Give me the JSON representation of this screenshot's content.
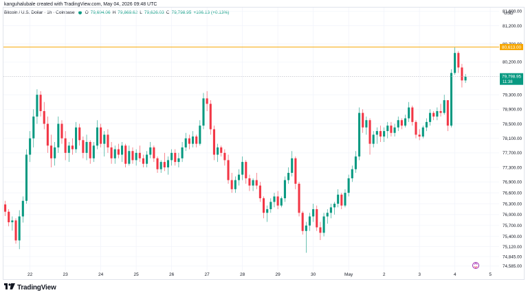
{
  "caption": "kanguhalubale created with TradingView.com, May 04, 2026 09:48 UTC",
  "legend": {
    "symbol": "Bitcoin / U.S. Dollar · 1h · Coinbase",
    "o_label": "O",
    "o_value": "79,694.06",
    "h_label": "H",
    "h_value": "79,869.62",
    "l_label": "L",
    "l_value": "79,626.03",
    "c_label": "C",
    "c_value": "79,798.95",
    "change": "+106.13 (+0.13%)"
  },
  "currency": "USD",
  "brand": {
    "logo_icon": "tradingview-logo-icon",
    "name": "TradingView"
  },
  "colors": {
    "up": "#089981",
    "down": "#f23645",
    "hline": "#f7a600",
    "price_label": "#089981"
  },
  "chart_data": {
    "type": "candlestick",
    "title": "Bitcoin / U.S. Dollar · 1h · Coinbase",
    "ylim": [
      74450,
      81700
    ],
    "y_ticks": [
      {
        "v": 81600,
        "label": "81,600.00"
      },
      {
        "v": 81200,
        "label": "81,200.00"
      },
      {
        "v": 80700,
        "label": "80,700.00"
      },
      {
        "v": 80200,
        "label": "80,200.00"
      },
      {
        "v": 79300,
        "label": "79,300.00"
      },
      {
        "v": 78900,
        "label": "78,900.00"
      },
      {
        "v": 78500,
        "label": "78,500.00"
      },
      {
        "v": 78100,
        "label": "78,100.00"
      },
      {
        "v": 77700,
        "label": "77,700.00"
      },
      {
        "v": 77300,
        "label": "77,300.00"
      },
      {
        "v": 76900,
        "label": "76,900.00"
      },
      {
        "v": 76600,
        "label": "76,600.00"
      },
      {
        "v": 76300,
        "label": "76,300.00"
      },
      {
        "v": 76000,
        "label": "76,000.00"
      },
      {
        "v": 75700,
        "label": "75,700.00"
      },
      {
        "v": 75400,
        "label": "75,400.00"
      },
      {
        "v": 75120,
        "label": "75,120.00"
      },
      {
        "v": 74845,
        "label": "74,845.00"
      },
      {
        "v": 74585,
        "label": "74,585.00"
      }
    ],
    "x_ticks": [
      {
        "day": 1,
        "label": "22"
      },
      {
        "day": 2,
        "label": "23"
      },
      {
        "day": 3,
        "label": "24"
      },
      {
        "day": 4,
        "label": "25"
      },
      {
        "day": 5,
        "label": "26"
      },
      {
        "day": 6,
        "label": "27"
      },
      {
        "day": 7,
        "label": "28"
      },
      {
        "day": 8,
        "label": "29"
      },
      {
        "day": 9,
        "label": "30"
      },
      {
        "day": 10,
        "label": "May"
      },
      {
        "day": 11,
        "label": "2"
      },
      {
        "day": 12,
        "label": "3"
      },
      {
        "day": 13,
        "label": "4"
      },
      {
        "day": 14,
        "label": "5"
      }
    ],
    "x_range_days": [
      0.25,
      14.25
    ],
    "horizontal_line": {
      "value": 80613,
      "label": "80,613.00"
    },
    "last_price": {
      "value": 79798.95,
      "label": "79,798.95",
      "countdown": "11:38"
    },
    "candles": [
      {
        "d": 0.3,
        "o": 76280,
        "h": 76380,
        "l": 75960,
        "c": 76080
      },
      {
        "d": 0.4,
        "o": 76080,
        "h": 76150,
        "l": 75680,
        "c": 75790
      },
      {
        "d": 0.5,
        "o": 75790,
        "h": 75950,
        "l": 75560,
        "c": 75840
      },
      {
        "d": 0.6,
        "o": 75840,
        "h": 75900,
        "l": 75200,
        "c": 75290
      },
      {
        "d": 0.7,
        "o": 75290,
        "h": 76120,
        "l": 75050,
        "c": 75950
      },
      {
        "d": 0.8,
        "o": 75950,
        "h": 76500,
        "l": 75780,
        "c": 76380
      },
      {
        "d": 0.9,
        "o": 76380,
        "h": 77800,
        "l": 76300,
        "c": 77650
      },
      {
        "d": 1.0,
        "o": 77650,
        "h": 78300,
        "l": 77450,
        "c": 78100
      },
      {
        "d": 1.1,
        "o": 78100,
        "h": 78900,
        "l": 77850,
        "c": 78700
      },
      {
        "d": 1.2,
        "o": 78700,
        "h": 79450,
        "l": 78500,
        "c": 79300
      },
      {
        "d": 1.3,
        "o": 79300,
        "h": 79400,
        "l": 78700,
        "c": 78850
      },
      {
        "d": 1.4,
        "o": 78850,
        "h": 79100,
        "l": 78350,
        "c": 78500
      },
      {
        "d": 1.5,
        "o": 78500,
        "h": 78700,
        "l": 77700,
        "c": 77900
      },
      {
        "d": 1.6,
        "o": 77900,
        "h": 78200,
        "l": 77300,
        "c": 77550
      },
      {
        "d": 1.7,
        "o": 77550,
        "h": 78000,
        "l": 77350,
        "c": 77850
      },
      {
        "d": 1.8,
        "o": 77850,
        "h": 78700,
        "l": 77700,
        "c": 78500
      },
      {
        "d": 1.9,
        "o": 78500,
        "h": 78600,
        "l": 77950,
        "c": 78100
      },
      {
        "d": 2.0,
        "o": 78100,
        "h": 78300,
        "l": 77500,
        "c": 77700
      },
      {
        "d": 2.1,
        "o": 77700,
        "h": 78000,
        "l": 77450,
        "c": 77900
      },
      {
        "d": 2.2,
        "o": 77900,
        "h": 78100,
        "l": 77650,
        "c": 77800
      },
      {
        "d": 2.3,
        "o": 77800,
        "h": 78550,
        "l": 77700,
        "c": 78400
      },
      {
        "d": 2.4,
        "o": 78400,
        "h": 78500,
        "l": 77900,
        "c": 78050
      },
      {
        "d": 2.5,
        "o": 78050,
        "h": 78150,
        "l": 77550,
        "c": 77700
      },
      {
        "d": 2.6,
        "o": 77700,
        "h": 78200,
        "l": 77500,
        "c": 78000
      },
      {
        "d": 2.7,
        "o": 78000,
        "h": 78050,
        "l": 77400,
        "c": 77550
      },
      {
        "d": 2.8,
        "o": 77550,
        "h": 78000,
        "l": 77450,
        "c": 77900
      },
      {
        "d": 2.9,
        "o": 77900,
        "h": 78600,
        "l": 77800,
        "c": 78400
      },
      {
        "d": 3.0,
        "o": 78400,
        "h": 78500,
        "l": 77850,
        "c": 77950
      },
      {
        "d": 3.1,
        "o": 77950,
        "h": 78300,
        "l": 77600,
        "c": 78200
      },
      {
        "d": 3.2,
        "o": 78200,
        "h": 78350,
        "l": 77700,
        "c": 77850
      },
      {
        "d": 3.3,
        "o": 77850,
        "h": 78000,
        "l": 77400,
        "c": 77550
      },
      {
        "d": 3.4,
        "o": 77550,
        "h": 77900,
        "l": 77400,
        "c": 77800
      },
      {
        "d": 3.5,
        "o": 77800,
        "h": 77950,
        "l": 77550,
        "c": 77650
      },
      {
        "d": 3.6,
        "o": 77650,
        "h": 78000,
        "l": 77450,
        "c": 77900
      },
      {
        "d": 3.7,
        "o": 77900,
        "h": 77950,
        "l": 77300,
        "c": 77400
      },
      {
        "d": 3.8,
        "o": 77400,
        "h": 77900,
        "l": 77350,
        "c": 77750
      },
      {
        "d": 3.9,
        "o": 77750,
        "h": 77850,
        "l": 77400,
        "c": 77500
      },
      {
        "d": 4.0,
        "o": 77500,
        "h": 77800,
        "l": 77350,
        "c": 77700
      },
      {
        "d": 4.1,
        "o": 77700,
        "h": 77900,
        "l": 77450,
        "c": 77550
      },
      {
        "d": 4.2,
        "o": 77550,
        "h": 77650,
        "l": 77300,
        "c": 77400
      },
      {
        "d": 4.3,
        "o": 77400,
        "h": 77750,
        "l": 77300,
        "c": 77650
      },
      {
        "d": 4.4,
        "o": 77650,
        "h": 78000,
        "l": 77550,
        "c": 77850
      },
      {
        "d": 4.5,
        "o": 77850,
        "h": 77900,
        "l": 77450,
        "c": 77550
      },
      {
        "d": 4.6,
        "o": 77550,
        "h": 77600,
        "l": 77150,
        "c": 77250
      },
      {
        "d": 4.7,
        "o": 77250,
        "h": 77500,
        "l": 77150,
        "c": 77450
      },
      {
        "d": 4.8,
        "o": 77450,
        "h": 77700,
        "l": 77200,
        "c": 77300
      },
      {
        "d": 4.9,
        "o": 77300,
        "h": 77600,
        "l": 77100,
        "c": 77500
      },
      {
        "d": 5.0,
        "o": 77500,
        "h": 77800,
        "l": 77350,
        "c": 77700
      },
      {
        "d": 5.1,
        "o": 77700,
        "h": 77800,
        "l": 77350,
        "c": 77450
      },
      {
        "d": 5.2,
        "o": 77450,
        "h": 77700,
        "l": 77300,
        "c": 77550
      },
      {
        "d": 5.3,
        "o": 77550,
        "h": 78000,
        "l": 77450,
        "c": 77850
      },
      {
        "d": 5.4,
        "o": 77850,
        "h": 78250,
        "l": 77750,
        "c": 78100
      },
      {
        "d": 5.5,
        "o": 78100,
        "h": 78200,
        "l": 77800,
        "c": 77950
      },
      {
        "d": 5.6,
        "o": 77950,
        "h": 78300,
        "l": 77850,
        "c": 78150
      },
      {
        "d": 5.7,
        "o": 78150,
        "h": 78200,
        "l": 77850,
        "c": 77950
      },
      {
        "d": 5.8,
        "o": 77950,
        "h": 78600,
        "l": 77900,
        "c": 78450
      },
      {
        "d": 5.9,
        "o": 78450,
        "h": 79350,
        "l": 78350,
        "c": 79200
      },
      {
        "d": 6.0,
        "o": 79200,
        "h": 79400,
        "l": 78850,
        "c": 79050
      },
      {
        "d": 6.1,
        "o": 79050,
        "h": 79150,
        "l": 78200,
        "c": 78350
      },
      {
        "d": 6.2,
        "o": 78350,
        "h": 78450,
        "l": 77500,
        "c": 77650
      },
      {
        "d": 6.3,
        "o": 77650,
        "h": 77950,
        "l": 77450,
        "c": 77850
      },
      {
        "d": 6.4,
        "o": 77850,
        "h": 77900,
        "l": 77600,
        "c": 77700
      },
      {
        "d": 6.5,
        "o": 77700,
        "h": 77800,
        "l": 77350,
        "c": 77500
      },
      {
        "d": 6.6,
        "o": 77500,
        "h": 77650,
        "l": 76850,
        "c": 76950
      },
      {
        "d": 6.7,
        "o": 76950,
        "h": 77150,
        "l": 76600,
        "c": 76700
      },
      {
        "d": 6.8,
        "o": 76700,
        "h": 77050,
        "l": 76600,
        "c": 76950
      },
      {
        "d": 6.9,
        "o": 76950,
        "h": 77250,
        "l": 76800,
        "c": 77100
      },
      {
        "d": 7.0,
        "o": 77100,
        "h": 77600,
        "l": 76950,
        "c": 77450
      },
      {
        "d": 7.1,
        "o": 77450,
        "h": 77500,
        "l": 76850,
        "c": 77000
      },
      {
        "d": 7.2,
        "o": 77000,
        "h": 77100,
        "l": 76650,
        "c": 76800
      },
      {
        "d": 7.3,
        "o": 76800,
        "h": 77000,
        "l": 76650,
        "c": 76950
      },
      {
        "d": 7.4,
        "o": 76950,
        "h": 77150,
        "l": 76700,
        "c": 76800
      },
      {
        "d": 7.5,
        "o": 76800,
        "h": 76900,
        "l": 76350,
        "c": 76450
      },
      {
        "d": 7.6,
        "o": 76450,
        "h": 76500,
        "l": 75900,
        "c": 76050
      },
      {
        "d": 7.7,
        "o": 76050,
        "h": 76250,
        "l": 75800,
        "c": 76150
      },
      {
        "d": 7.8,
        "o": 76150,
        "h": 76450,
        "l": 76050,
        "c": 76350
      },
      {
        "d": 7.9,
        "o": 76350,
        "h": 76600,
        "l": 76200,
        "c": 76500
      },
      {
        "d": 8.0,
        "o": 76500,
        "h": 76650,
        "l": 76150,
        "c": 76250
      },
      {
        "d": 8.1,
        "o": 76250,
        "h": 76500,
        "l": 76200,
        "c": 76450
      },
      {
        "d": 8.2,
        "o": 76450,
        "h": 77050,
        "l": 76350,
        "c": 76950
      },
      {
        "d": 8.3,
        "o": 76950,
        "h": 77300,
        "l": 76850,
        "c": 77150
      },
      {
        "d": 8.4,
        "o": 77150,
        "h": 77750,
        "l": 77050,
        "c": 77550
      },
      {
        "d": 8.5,
        "o": 77550,
        "h": 77600,
        "l": 76700,
        "c": 76850
      },
      {
        "d": 8.6,
        "o": 76850,
        "h": 76900,
        "l": 75950,
        "c": 76050
      },
      {
        "d": 8.7,
        "o": 76050,
        "h": 76100,
        "l": 75450,
        "c": 75550
      },
      {
        "d": 8.8,
        "o": 75550,
        "h": 75800,
        "l": 74950,
        "c": 75700
      },
      {
        "d": 8.9,
        "o": 75700,
        "h": 76050,
        "l": 75550,
        "c": 75950
      },
      {
        "d": 9.0,
        "o": 75950,
        "h": 76300,
        "l": 75800,
        "c": 76150
      },
      {
        "d": 9.1,
        "o": 76150,
        "h": 76250,
        "l": 75550,
        "c": 75650
      },
      {
        "d": 9.2,
        "o": 75650,
        "h": 75800,
        "l": 75300,
        "c": 75500
      },
      {
        "d": 9.3,
        "o": 75500,
        "h": 76050,
        "l": 75400,
        "c": 75950
      },
      {
        "d": 9.4,
        "o": 75950,
        "h": 76150,
        "l": 75750,
        "c": 76050
      },
      {
        "d": 9.5,
        "o": 76050,
        "h": 76300,
        "l": 75900,
        "c": 76200
      },
      {
        "d": 9.6,
        "o": 76200,
        "h": 76350,
        "l": 76000,
        "c": 76300
      },
      {
        "d": 9.7,
        "o": 76300,
        "h": 76700,
        "l": 76200,
        "c": 76550
      },
      {
        "d": 9.8,
        "o": 76550,
        "h": 76600,
        "l": 76150,
        "c": 76250
      },
      {
        "d": 9.9,
        "o": 76250,
        "h": 76700,
        "l": 76200,
        "c": 76600
      },
      {
        "d": 10.0,
        "o": 76600,
        "h": 77100,
        "l": 76500,
        "c": 77000
      },
      {
        "d": 10.1,
        "o": 77000,
        "h": 77350,
        "l": 76900,
        "c": 77250
      },
      {
        "d": 10.2,
        "o": 77250,
        "h": 77750,
        "l": 77150,
        "c": 77600
      },
      {
        "d": 10.3,
        "o": 77600,
        "h": 78950,
        "l": 77500,
        "c": 78800
      },
      {
        "d": 10.4,
        "o": 78800,
        "h": 78900,
        "l": 78250,
        "c": 78400
      },
      {
        "d": 10.5,
        "o": 78400,
        "h": 78700,
        "l": 78200,
        "c": 78600
      },
      {
        "d": 10.6,
        "o": 78600,
        "h": 78650,
        "l": 77650,
        "c": 77950
      },
      {
        "d": 10.7,
        "o": 77950,
        "h": 78300,
        "l": 77850,
        "c": 78200
      },
      {
        "d": 10.8,
        "o": 78200,
        "h": 78400,
        "l": 77950,
        "c": 78300
      },
      {
        "d": 10.9,
        "o": 78300,
        "h": 78450,
        "l": 78000,
        "c": 78150
      },
      {
        "d": 11.0,
        "o": 78150,
        "h": 78400,
        "l": 78000,
        "c": 78300
      },
      {
        "d": 11.1,
        "o": 78300,
        "h": 78550,
        "l": 78100,
        "c": 78450
      },
      {
        "d": 11.2,
        "o": 78450,
        "h": 78550,
        "l": 78150,
        "c": 78250
      },
      {
        "d": 11.3,
        "o": 78250,
        "h": 78500,
        "l": 78150,
        "c": 78400
      },
      {
        "d": 11.4,
        "o": 78400,
        "h": 78700,
        "l": 78300,
        "c": 78600
      },
      {
        "d": 11.5,
        "o": 78600,
        "h": 78650,
        "l": 78350,
        "c": 78450
      },
      {
        "d": 11.6,
        "o": 78450,
        "h": 78750,
        "l": 78400,
        "c": 78650
      },
      {
        "d": 11.7,
        "o": 78650,
        "h": 79100,
        "l": 78550,
        "c": 78950
      },
      {
        "d": 11.8,
        "o": 78950,
        "h": 79000,
        "l": 78450,
        "c": 78550
      },
      {
        "d": 11.9,
        "o": 78550,
        "h": 78600,
        "l": 78100,
        "c": 78200
      },
      {
        "d": 12.0,
        "o": 78200,
        "h": 78350,
        "l": 78050,
        "c": 78150
      },
      {
        "d": 12.1,
        "o": 78150,
        "h": 78450,
        "l": 78100,
        "c": 78400
      },
      {
        "d": 12.2,
        "o": 78400,
        "h": 78650,
        "l": 78300,
        "c": 78550
      },
      {
        "d": 12.3,
        "o": 78550,
        "h": 78900,
        "l": 78450,
        "c": 78800
      },
      {
        "d": 12.4,
        "o": 78800,
        "h": 78850,
        "l": 78600,
        "c": 78700
      },
      {
        "d": 12.5,
        "o": 78700,
        "h": 78950,
        "l": 78600,
        "c": 78850
      },
      {
        "d": 12.6,
        "o": 78850,
        "h": 79050,
        "l": 78700,
        "c": 78800
      },
      {
        "d": 12.7,
        "o": 78800,
        "h": 79300,
        "l": 78750,
        "c": 79150
      },
      {
        "d": 12.8,
        "o": 79150,
        "h": 79150,
        "l": 78300,
        "c": 78450
      },
      {
        "d": 12.9,
        "o": 78450,
        "h": 80000,
        "l": 78400,
        "c": 79900
      },
      {
        "d": 13.0,
        "o": 79900,
        "h": 80600,
        "l": 79850,
        "c": 80450
      },
      {
        "d": 13.1,
        "o": 80450,
        "h": 80500,
        "l": 79900,
        "c": 80050
      },
      {
        "d": 13.2,
        "o": 80050,
        "h": 80150,
        "l": 79500,
        "c": 79694
      },
      {
        "d": 13.3,
        "o": 79694,
        "h": 79870,
        "l": 79626,
        "c": 79799
      }
    ]
  }
}
